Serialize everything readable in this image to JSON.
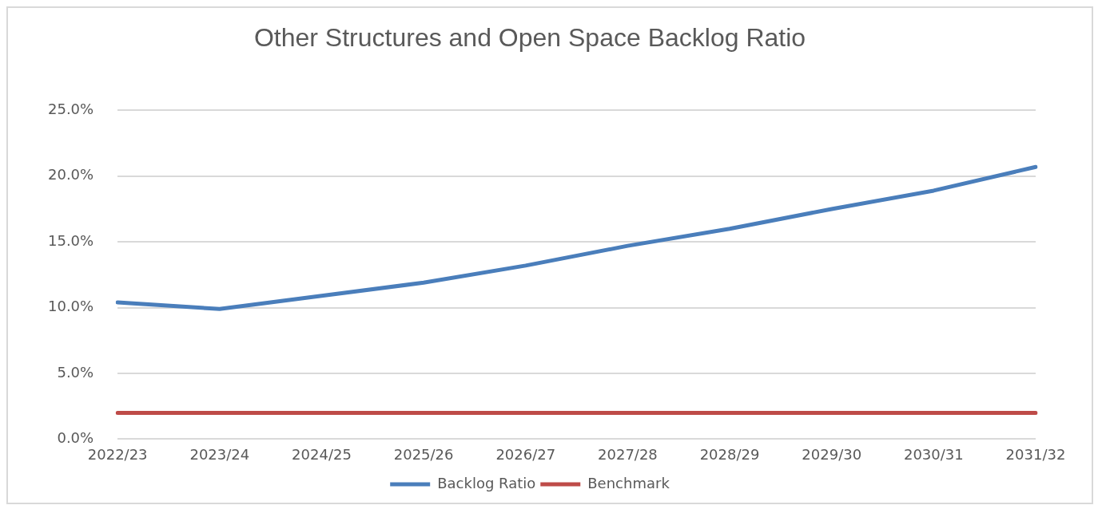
{
  "chart_data": {
    "type": "line",
    "title": "Other Structures and Open Space Backlog Ratio",
    "categories": [
      "2022/23",
      "2023/24",
      "2024/25",
      "2025/26",
      "2026/27",
      "2027/28",
      "2028/29",
      "2029/30",
      "2030/31",
      "2031/32"
    ],
    "series": [
      {
        "name": "Backlog Ratio",
        "color": "#4a7ebb",
        "values": [
          10.4,
          9.9,
          10.9,
          11.9,
          13.2,
          14.7,
          16.0,
          17.5,
          18.9,
          20.7
        ]
      },
      {
        "name": "Benchmark",
        "color": "#be4b48",
        "values": [
          2.0,
          2.0,
          2.0,
          2.0,
          2.0,
          2.0,
          2.0,
          2.0,
          2.0,
          2.0
        ]
      }
    ],
    "ylim": [
      0,
      25
    ],
    "yticks": [
      {
        "value": 0,
        "label": "0.0%"
      },
      {
        "value": 5,
        "label": "5.0%"
      },
      {
        "value": 10,
        "label": "10.0%"
      },
      {
        "value": 15,
        "label": "15.0%"
      },
      {
        "value": 20,
        "label": "20.0%"
      },
      {
        "value": 25,
        "label": "25.0%"
      }
    ],
    "grid": "y",
    "legend": "bottom",
    "marker": "none",
    "line_style": "solid"
  }
}
